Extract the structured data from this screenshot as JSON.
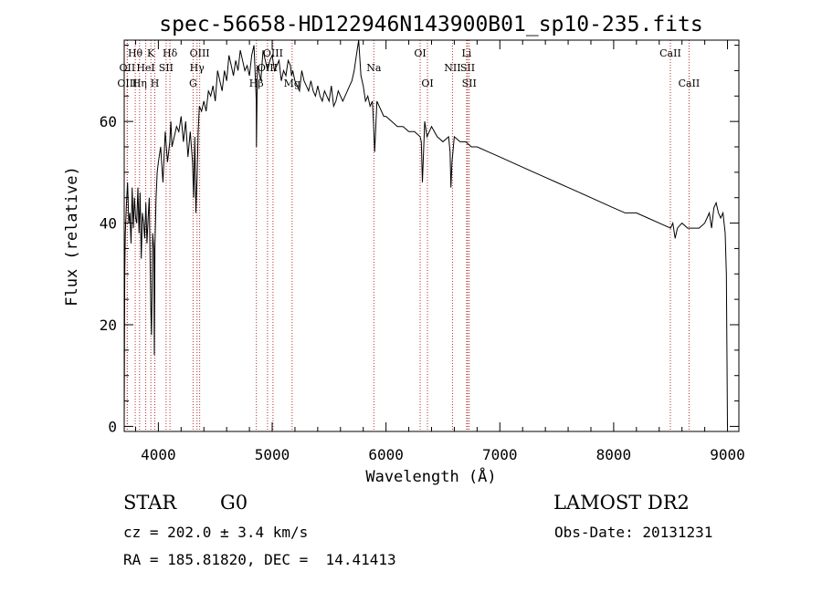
{
  "chart_data": {
    "type": "line",
    "title": "spec-56658-HD122946N143900B01_sp10-235.fits",
    "xlabel": "Wavelength (Å)",
    "ylabel": "Flux (relative)",
    "xlim": [
      3700,
      9100
    ],
    "ylim": [
      -1,
      76
    ],
    "xticks": [
      4000,
      5000,
      6000,
      7000,
      8000,
      9000
    ],
    "yticks": [
      0,
      20,
      40,
      60
    ],
    "grid": false,
    "series": [
      {
        "values_x": [
          3700,
          3705,
          3710,
          3720,
          3730,
          3740,
          3750,
          3760,
          3770,
          3780,
          3790,
          3800,
          3810,
          3820,
          3830,
          3840,
          3850,
          3860,
          3870,
          3880,
          3890,
          3900,
          3910,
          3920,
          3930,
          3935,
          3940,
          3950,
          3960,
          3965,
          3970,
          3980,
          3990,
          4000,
          4020,
          4040,
          4060,
          4080,
          4100,
          4110,
          4120,
          4140,
          4160,
          4180,
          4200,
          4220,
          4240,
          4260,
          4280,
          4300,
          4310,
          4320,
          4330,
          4340,
          4350,
          4360,
          4380,
          4400,
          4420,
          4440,
          4460,
          4480,
          4500,
          4520,
          4540,
          4560,
          4580,
          4600,
          4620,
          4640,
          4660,
          4680,
          4700,
          4720,
          4740,
          4760,
          4780,
          4800,
          4820,
          4840,
          4860,
          4862,
          4870,
          4880,
          4900,
          4920,
          4940,
          4960,
          4980,
          5000,
          5020,
          5040,
          5060,
          5080,
          5100,
          5120,
          5140,
          5160,
          5170,
          5180,
          5200,
          5220,
          5240,
          5260,
          5280,
          5300,
          5320,
          5340,
          5360,
          5380,
          5400,
          5420,
          5440,
          5460,
          5480,
          5500,
          5520,
          5540,
          5560,
          5580,
          5600,
          5620,
          5640,
          5660,
          5680,
          5700,
          5720,
          5740,
          5760,
          5780,
          5800,
          5820,
          5840,
          5860,
          5880,
          5890,
          5900,
          5920,
          5940,
          5960,
          5980,
          6000,
          6050,
          6100,
          6150,
          6200,
          6250,
          6300,
          6310,
          6320,
          6340,
          6360,
          6400,
          6450,
          6500,
          6550,
          6563,
          6570,
          6580,
          6600,
          6650,
          6700,
          6750,
          6800,
          6900,
          7000,
          7100,
          7200,
          7300,
          7400,
          7500,
          7600,
          7700,
          7800,
          7900,
          8000,
          8100,
          8200,
          8300,
          8400,
          8500,
          8520,
          8540,
          8560,
          8600,
          8650,
          8700,
          8750,
          8800,
          8820,
          8840,
          8860,
          8880,
          8900,
          8920,
          8940,
          8960,
          8980,
          8990,
          9000
        ],
        "values_y": [
          0,
          30,
          38,
          44,
          48,
          40,
          42,
          36,
          47,
          39,
          45,
          41,
          40,
          47,
          38,
          46,
          33,
          42,
          40,
          37,
          44,
          36,
          41,
          45,
          28,
          22,
          18,
          38,
          35,
          14,
          36,
          45,
          50,
          52,
          55,
          48,
          58,
          52,
          56,
          60,
          55,
          57,
          59,
          58,
          61,
          56,
          60,
          53,
          58,
          52,
          45,
          57,
          42,
          49,
          58,
          63,
          62,
          64,
          62,
          66,
          65,
          67,
          64,
          70,
          68,
          66,
          70,
          68,
          73,
          71,
          69,
          72,
          70,
          74,
          72,
          70,
          71,
          69,
          73,
          75,
          64,
          55,
          71,
          70,
          68,
          74,
          72,
          70,
          72,
          73,
          70,
          71,
          72,
          68,
          70,
          69,
          72,
          71,
          69,
          70,
          68,
          67,
          66,
          70,
          68,
          67,
          66,
          68,
          66,
          65,
          67,
          65,
          64,
          66,
          65,
          64,
          67,
          63,
          64,
          66,
          65,
          64,
          65,
          66,
          67,
          68,
          70,
          73,
          76,
          69,
          67,
          64,
          65,
          63,
          64,
          60,
          54,
          64,
          63,
          62,
          61,
          61,
          60,
          59,
          59,
          58,
          58,
          57,
          56,
          48,
          60,
          57,
          59,
          57,
          56,
          57,
          54,
          47,
          52,
          57,
          56,
          56,
          55,
          55,
          54,
          53,
          52,
          51,
          50,
          49,
          48,
          47,
          46,
          45,
          44,
          43,
          42,
          42,
          41,
          40,
          39,
          40,
          37,
          39,
          40,
          39,
          39,
          39,
          40,
          41,
          42,
          39,
          43,
          44,
          42,
          41,
          42,
          38,
          30,
          0
        ]
      }
    ],
    "line_markers": [
      {
        "label": "Hθ",
        "x": 3797,
        "row": 1
      },
      {
        "label": "OII",
        "x": 3727,
        "row": 2
      },
      {
        "label": "OIII",
        "x": 3727,
        "row": 3
      },
      {
        "label": "K",
        "x": 3934,
        "row": 1
      },
      {
        "label": "HeI",
        "x": 3889,
        "row": 2
      },
      {
        "label": "Hη",
        "x": 3835,
        "row": 3
      },
      {
        "label": "SII",
        "x": 4068,
        "row": 2
      },
      {
        "label": "H",
        "x": 3969,
        "row": 3
      },
      {
        "label": "Hδ",
        "x": 4102,
        "row": 1
      },
      {
        "label": "OIII",
        "x": 4363,
        "row": 1
      },
      {
        "label": "Hγ",
        "x": 4340,
        "row": 2
      },
      {
        "label": "G",
        "x": 4305,
        "row": 3
      },
      {
        "label": "Hβ",
        "x": 4861,
        "row": 3
      },
      {
        "label": "OIII",
        "x": 5007,
        "row": 1
      },
      {
        "label": "OIII",
        "x": 4959,
        "row": 2
      },
      {
        "label": "Mg",
        "x": 5175,
        "row": 3
      },
      {
        "label": "Na",
        "x": 5893,
        "row": 2
      },
      {
        "label": "OI",
        "x": 6300,
        "row": 1
      },
      {
        "label": "OI",
        "x": 6364,
        "row": 3
      },
      {
        "label": "Li",
        "x": 6708,
        "row": 1
      },
      {
        "label": "NII",
        "x": 6584,
        "row": 2
      },
      {
        "label": "SII",
        "x": 6717,
        "row": 2
      },
      {
        "label": "SII",
        "x": 6731,
        "row": 3
      },
      {
        "label": "CaII",
        "x": 8498,
        "row": 1
      },
      {
        "label": "CaII",
        "x": 8662,
        "row": 3
      }
    ],
    "marker_line_color": "#b03030"
  },
  "info": {
    "class": "STAR",
    "subclass": "G0",
    "survey": "LAMOST DR2",
    "cz": "cz = 202.0 ± 3.4 km/s",
    "obs_date": "Obs-Date: 20131231",
    "coords": "RA = 185.81820, DEC =  14.41413"
  }
}
